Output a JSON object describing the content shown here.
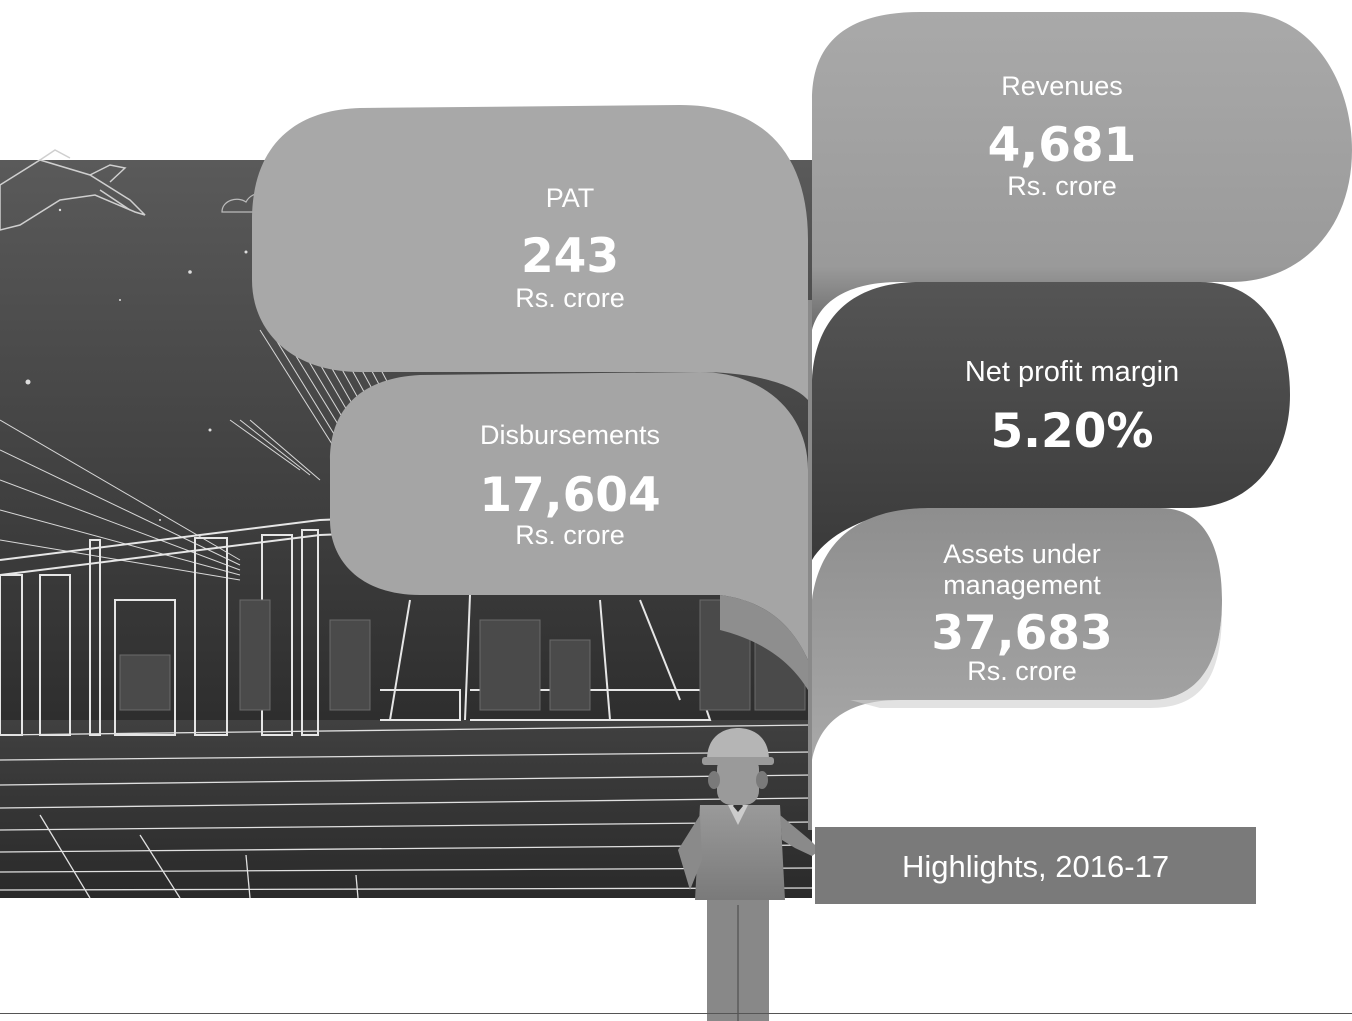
{
  "pat": {
    "label": "PAT",
    "value": "243",
    "unit": "Rs. crore"
  },
  "disbursements": {
    "label": "Disbursements",
    "value": "17,604",
    "unit": "Rs. crore"
  },
  "revenues": {
    "label": "Revenues",
    "value": "4,681",
    "unit": "Rs. crore"
  },
  "net_profit_margin": {
    "label": "Net profit margin",
    "value": "5.20%"
  },
  "aum": {
    "label_line1": "Assets under",
    "label_line2": "management",
    "value": "37,683",
    "unit": "Rs. crore"
  },
  "footer": {
    "title": "Highlights, 2016-17"
  },
  "colors": {
    "background": "#ffffff",
    "scene_dark": "#3d3d3d",
    "bubble_light": "#a8a8a8",
    "bubble_dark": "#4a4a4a",
    "footer_box": "#7a7a7a",
    "text": "#ffffff"
  }
}
